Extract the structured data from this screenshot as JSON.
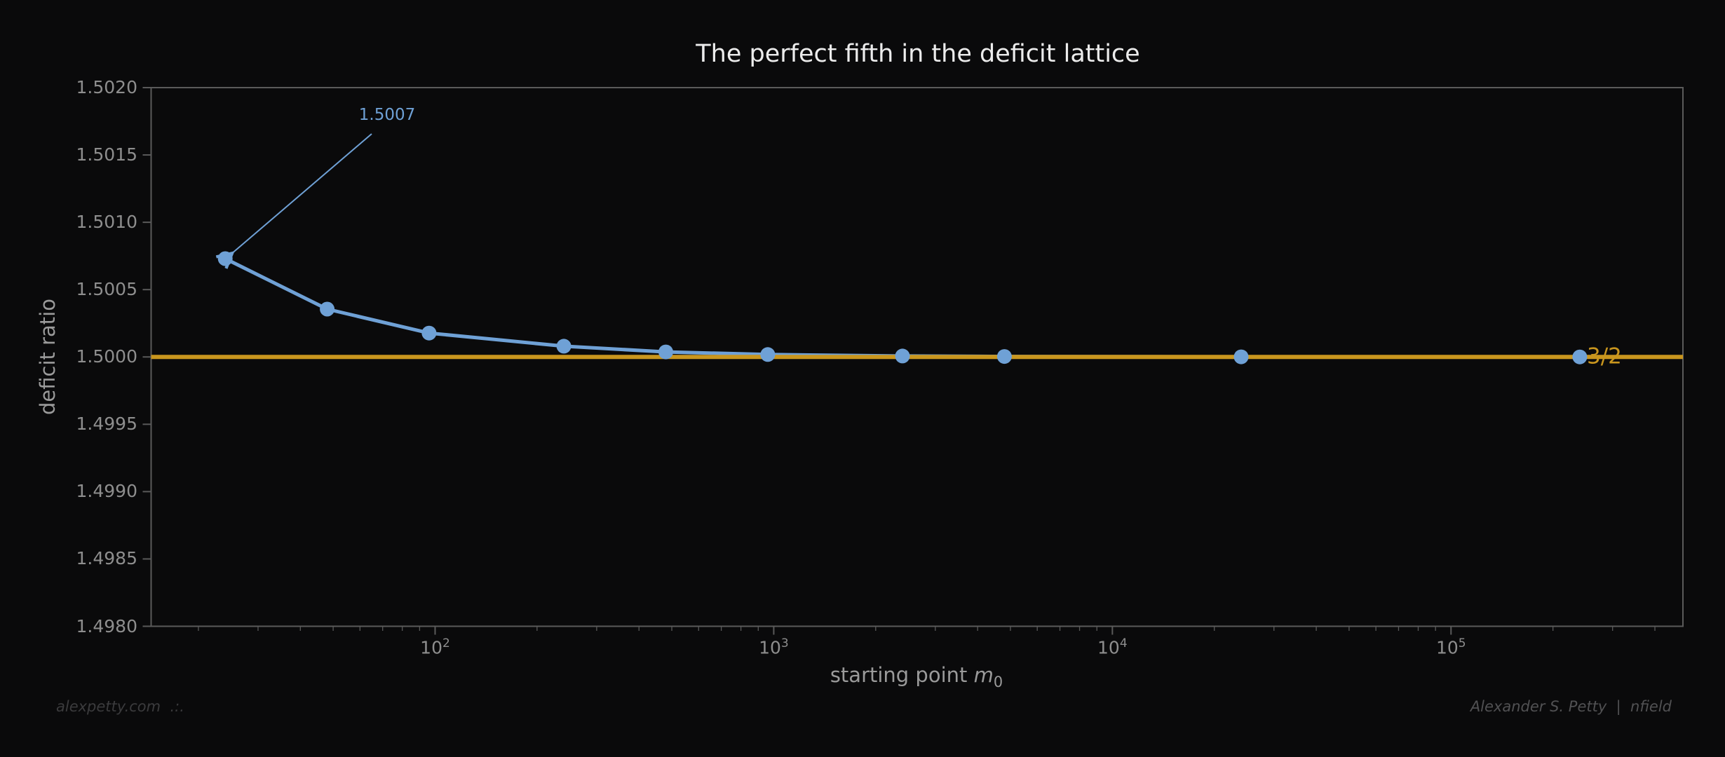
{
  "figure": {
    "background": "#0a0a0b",
    "footer_left": "alexpetty.com  .:.",
    "footer_right": "Alexander S. Petty  |  nfield"
  },
  "chart_data": {
    "type": "line",
    "title": "The perfect fifth in the deficit lattice",
    "xlabel": {
      "text": "starting point ",
      "math_base": "m",
      "math_sub": "0"
    },
    "ylabel": "deficit ratio",
    "x_scale": "log",
    "grid": false,
    "legend_position": "none",
    "xlim": [
      14.5,
      484000
    ],
    "ylim": [
      1.498,
      1.502
    ],
    "x_ticks": [
      {
        "value": 100,
        "base": "10",
        "exp": "2"
      },
      {
        "value": 1000,
        "base": "10",
        "exp": "3"
      },
      {
        "value": 10000,
        "base": "10",
        "exp": "4"
      },
      {
        "value": 100000,
        "base": "10",
        "exp": "5"
      }
    ],
    "y_ticks": [
      {
        "value": 1.502,
        "label": "1.5020"
      },
      {
        "value": 1.5015,
        "label": "1.5015"
      },
      {
        "value": 1.501,
        "label": "1.5010"
      },
      {
        "value": 1.5005,
        "label": "1.5005"
      },
      {
        "value": 1.5,
        "label": "1.5000"
      },
      {
        "value": 1.4995,
        "label": "1.4995"
      },
      {
        "value": 1.499,
        "label": "1.4990"
      },
      {
        "value": 1.4985,
        "label": "1.4985"
      },
      {
        "value": 1.498,
        "label": "1.4980"
      }
    ],
    "series": [
      {
        "name": "deficit ratio",
        "color": "#6fa1d6",
        "marker": "circle",
        "x": [
          24,
          48,
          96,
          240,
          480,
          960,
          2400,
          4800,
          24000,
          240000
        ],
        "y": [
          1.50073,
          1.500355,
          1.500177,
          1.50008,
          1.500037,
          1.500018,
          1.500007,
          1.5000035,
          1.5000007,
          1.50000007
        ]
      }
    ],
    "reference_line": {
      "value": 1.5,
      "label": "3/2",
      "color": "#c9961e"
    },
    "annotation": {
      "text": "1.5007",
      "target_x": 24,
      "target_y": 1.50073,
      "color": "#6fa1d6"
    }
  },
  "colors": {
    "title": "#ececec",
    "tick_label": "#8e8e8e",
    "axis_label": "#9a9a9a",
    "spine": "#5a5a5a",
    "series_blue": "#6fa1d6",
    "reference_orange": "#c9961e",
    "footer_left": "#3b3b3d",
    "footer_right": "#515153"
  }
}
